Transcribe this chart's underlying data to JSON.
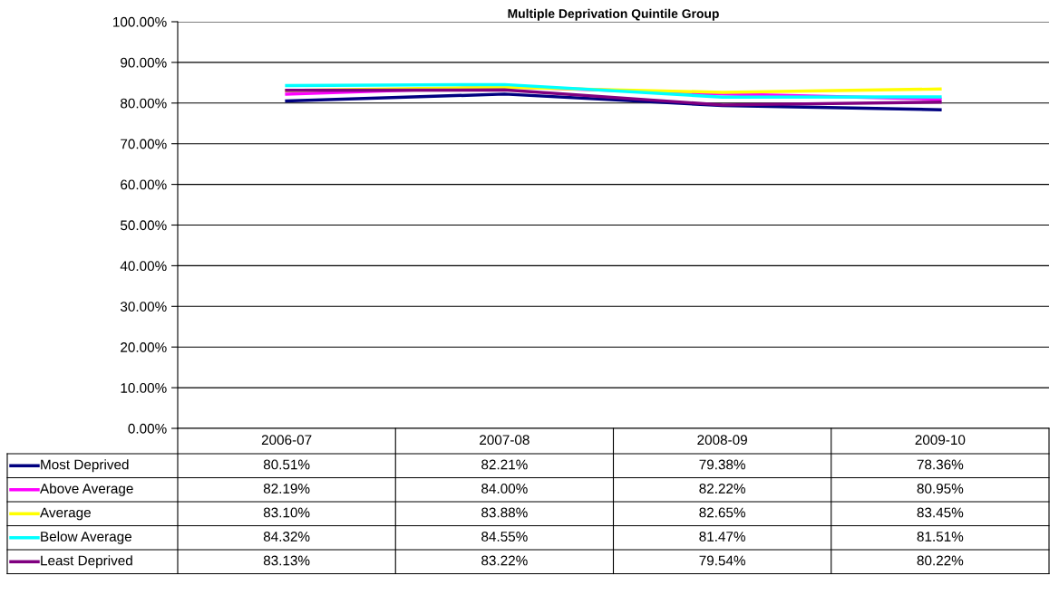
{
  "chart_data": {
    "type": "line",
    "title": "Multiple Deprivation Quintile Group",
    "categories": [
      "2006-07",
      "2007-08",
      "2008-09",
      "2009-10"
    ],
    "series": [
      {
        "name": "Most Deprived",
        "color": "#000080",
        "values": [
          80.51,
          82.21,
          79.38,
          78.36
        ],
        "value_labels": [
          "80.51%",
          "82.21%",
          "79.38%",
          "78.36%"
        ]
      },
      {
        "name": "Above Average",
        "color": "#ff00ff",
        "values": [
          82.19,
          84.0,
          82.22,
          80.95
        ],
        "value_labels": [
          "82.19%",
          "84.00%",
          "82.22%",
          "80.95%"
        ]
      },
      {
        "name": "Average",
        "color": "#ffff00",
        "values": [
          83.1,
          83.88,
          82.65,
          83.45
        ],
        "value_labels": [
          "83.10%",
          "83.88%",
          "82.65%",
          "83.45%"
        ]
      },
      {
        "name": "Below Average",
        "color": "#00ffff",
        "values": [
          84.32,
          84.55,
          81.47,
          81.51
        ],
        "value_labels": [
          "84.32%",
          "84.55%",
          "81.47%",
          "81.51%"
        ]
      },
      {
        "name": "Least Deprived",
        "color": "#800080",
        "values": [
          83.13,
          83.22,
          79.54,
          80.22
        ],
        "value_labels": [
          "83.13%",
          "83.22%",
          "79.54%",
          "80.22%"
        ]
      }
    ],
    "ylim": [
      0,
      100
    ],
    "yticks": [
      {
        "value": 0,
        "label": "0.00%"
      },
      {
        "value": 10,
        "label": "10.00%"
      },
      {
        "value": 20,
        "label": "20.00%"
      },
      {
        "value": 30,
        "label": "30.00%"
      },
      {
        "value": 40,
        "label": "40.00%"
      },
      {
        "value": 50,
        "label": "50.00%"
      },
      {
        "value": 60,
        "label": "60.00%"
      },
      {
        "value": 70,
        "label": "70.00%"
      },
      {
        "value": 80,
        "label": "80.00%"
      },
      {
        "value": 90,
        "label": "90.00%"
      },
      {
        "value": 100,
        "label": "100.00%"
      }
    ],
    "grid": "y",
    "legend": "bottom",
    "marker": "none",
    "line_style": "solid"
  }
}
